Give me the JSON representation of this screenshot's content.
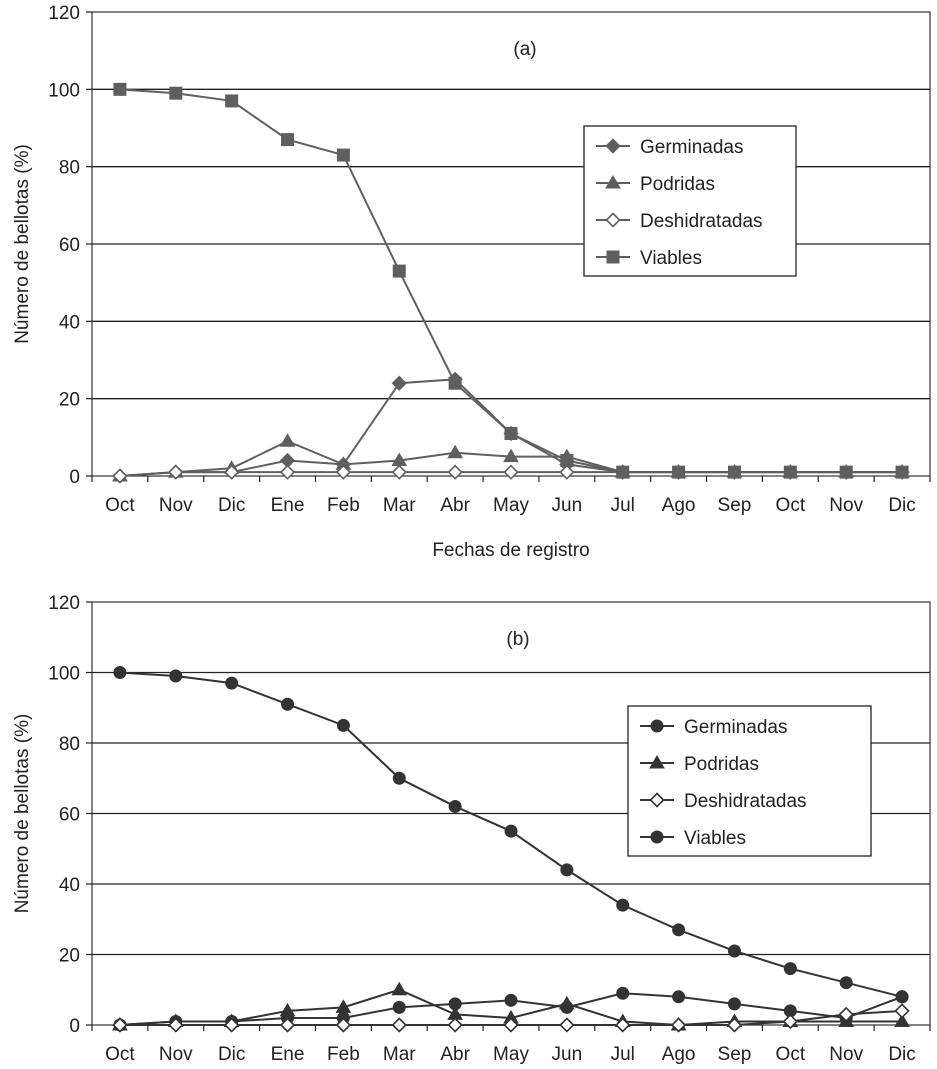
{
  "chart_data": [
    {
      "type": "line",
      "title": "(a)",
      "xlabel": "Fechas de registro",
      "ylabel": "Número de bellotas (%)",
      "ylim": [
        0,
        120
      ],
      "yticks": [
        "0",
        "20",
        "40",
        "60",
        "80",
        "100",
        "120"
      ],
      "categories": [
        "Oct",
        "Nov",
        "Dic",
        "Ene",
        "Feb",
        "Mar",
        "Abr",
        "May",
        "Jun",
        "Jul",
        "Ago",
        "Sep",
        "Oct",
        "Nov",
        "Dic"
      ],
      "grid": true,
      "legend_position": "right",
      "line_color": "#5f5f5f",
      "series": [
        {
          "name": "Germinadas",
          "marker": "diamond",
          "values": [
            0,
            1,
            1,
            4,
            3,
            24,
            25,
            11,
            3,
            1,
            1,
            1,
            1,
            1,
            1
          ]
        },
        {
          "name": "Podridas",
          "marker": "triangle",
          "values": [
            0,
            1,
            2,
            9,
            3,
            4,
            6,
            5,
            5,
            1,
            1,
            1,
            1,
            1,
            1
          ]
        },
        {
          "name": "Deshidratadas",
          "marker": "open-diamond",
          "values": [
            0,
            1,
            1,
            1,
            1,
            1,
            1,
            1,
            1,
            1,
            1,
            1,
            1,
            1,
            1
          ]
        },
        {
          "name": "Viables",
          "marker": "square",
          "values": [
            100,
            99,
            97,
            87,
            83,
            53,
            24,
            11,
            4,
            1,
            1,
            1,
            1,
            1,
            1
          ]
        }
      ]
    },
    {
      "type": "line",
      "title": "(b)",
      "xlabel": "",
      "ylabel": "Número de bellotas (%)",
      "ylim": [
        0,
        120
      ],
      "yticks": [
        "0",
        "20",
        "40",
        "60",
        "80",
        "100",
        "120"
      ],
      "categories": [
        "Oct",
        "Nov",
        "Dic",
        "Ene",
        "Feb",
        "Mar",
        "Abr",
        "May",
        "Jun",
        "Jul",
        "Ago",
        "Sep",
        "Oct",
        "Nov",
        "Dic"
      ],
      "grid": true,
      "legend_position": "right",
      "line_color": "#333333",
      "series": [
        {
          "name": "Germinadas",
          "marker": "circle",
          "values": [
            0,
            1,
            1,
            2,
            2,
            5,
            6,
            7,
            5,
            9,
            8,
            6,
            4,
            2,
            8
          ]
        },
        {
          "name": "Podridas",
          "marker": "triangle",
          "values": [
            0,
            1,
            1,
            4,
            5,
            10,
            3,
            2,
            6,
            1,
            0,
            1,
            1,
            1,
            1
          ]
        },
        {
          "name": "Deshidratadas",
          "marker": "open-diamond",
          "values": [
            0,
            0,
            0,
            0,
            0,
            0,
            0,
            0,
            0,
            0,
            0,
            0,
            1,
            3,
            4
          ]
        },
        {
          "name": "Viables",
          "marker": "circle",
          "values": [
            100,
            99,
            97,
            91,
            85,
            70,
            62,
            55,
            44,
            34,
            27,
            21,
            16,
            12,
            8
          ]
        }
      ]
    }
  ]
}
